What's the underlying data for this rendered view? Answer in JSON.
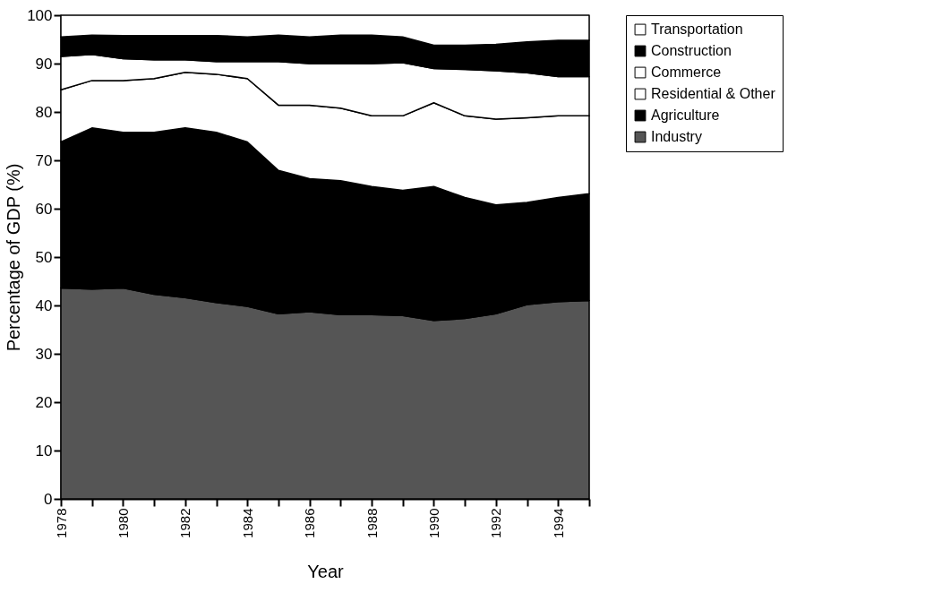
{
  "chart_data": {
    "type": "area",
    "stacked": true,
    "xlabel": "Year",
    "ylabel": "Percentage of GDP (%)",
    "x": [
      1978,
      1979,
      1980,
      1981,
      1982,
      1983,
      1984,
      1985,
      1986,
      1987,
      1988,
      1989,
      1990,
      1991,
      1992,
      1993,
      1994,
      1995
    ],
    "xlim": [
      1978,
      1995
    ],
    "xticks": [
      1978,
      {
        "value": 1979,
        "label": null
      },
      1980,
      {
        "value": 1981,
        "label": null
      },
      1982,
      {
        "value": 1983,
        "label": null
      },
      1984,
      {
        "value": 1985,
        "label": null
      },
      1986,
      {
        "value": 1987,
        "label": null
      },
      1988,
      {
        "value": 1989,
        "label": null
      },
      1990,
      {
        "value": 1991,
        "label": null
      },
      1992,
      {
        "value": 1993,
        "label": null
      },
      1994,
      {
        "value": 1995,
        "label": null
      }
    ],
    "ylim": [
      0,
      100
    ],
    "yticks": [
      0,
      10,
      20,
      30,
      40,
      50,
      60,
      70,
      80,
      90,
      100
    ],
    "legend": "right",
    "series": [
      {
        "name": "Industry",
        "color": "#555555",
        "values": [
          43.6,
          43.4,
          43.6,
          42.3,
          41.6,
          40.6,
          39.8,
          38.3,
          38.7,
          38.1,
          38.1,
          37.9,
          36.9,
          37.3,
          38.3,
          40.2,
          40.8,
          41.0
        ]
      },
      {
        "name": "Agriculture",
        "color": "#000000",
        "values": [
          30.2,
          33.3,
          32.2,
          33.5,
          35.1,
          35.2,
          34.0,
          29.6,
          27.5,
          27.7,
          26.5,
          25.9,
          27.7,
          25.0,
          22.5,
          21.1,
          21.5,
          22.1
        ]
      },
      {
        "name": "Residential & Other",
        "color": "#ffffff",
        "values": [
          10.8,
          9.8,
          10.7,
          11.1,
          11.5,
          12.0,
          13.1,
          13.5,
          15.2,
          15.0,
          14.6,
          15.4,
          17.3,
          16.9,
          17.7,
          17.5,
          16.9,
          16.1
        ]
      },
      {
        "name": "Commerce",
        "color": "#ffffff",
        "values": [
          6.9,
          5.4,
          4.5,
          3.9,
          2.6,
          2.6,
          3.5,
          9.0,
          8.6,
          9.2,
          10.8,
          11.0,
          7.1,
          9.6,
          10.0,
          9.3,
          8.1,
          8.1
        ]
      },
      {
        "name": "Construction",
        "color": "#000000",
        "values": [
          4.0,
          4.0,
          4.8,
          5.0,
          5.0,
          5.4,
          5.1,
          5.5,
          5.5,
          5.9,
          5.9,
          5.3,
          4.8,
          5.0,
          5.5,
          6.4,
          7.5,
          7.5
        ]
      },
      {
        "name": "Transportation",
        "color": "#ffffff",
        "values": [
          4.5,
          4.1,
          4.2,
          4.2,
          4.2,
          4.2,
          4.5,
          4.1,
          4.5,
          4.1,
          4.1,
          4.5,
          6.2,
          6.2,
          6.0,
          5.5,
          5.2,
          5.2
        ]
      }
    ]
  }
}
